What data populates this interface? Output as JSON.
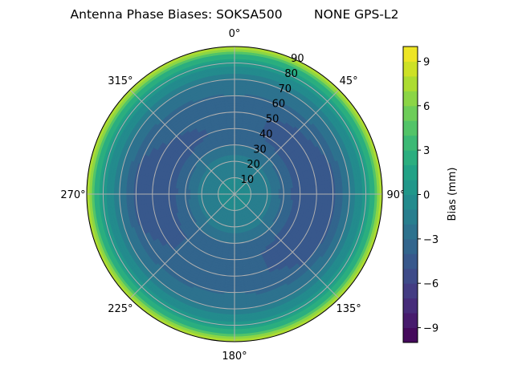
{
  "chart_data": {
    "type": "heatmap",
    "projection": "polar",
    "title": "Antenna Phase Biases: SOKSA500        NONE GPS-L2",
    "theta_direction": "clockwise",
    "theta_zero": "north",
    "theta_tick_labels": [
      "0°",
      "45°",
      "90°",
      "135°",
      "180°",
      "225°",
      "270°",
      "315°"
    ],
    "r_tick_labels": [
      "10",
      "20",
      "30",
      "40",
      "50",
      "60",
      "70",
      "80",
      "90"
    ],
    "r_range": [
      0,
      90
    ],
    "grid": true,
    "zenith": [
      0,
      10,
      20,
      30,
      40,
      50,
      60,
      70,
      80,
      85,
      90
    ],
    "azimuth": [
      0,
      45,
      90,
      135,
      180,
      225,
      270,
      315
    ],
    "values": [
      [
        0,
        0,
        0,
        0,
        0,
        0,
        0,
        0
      ],
      [
        -1,
        -1,
        -1,
        -1,
        -1,
        -1,
        -1,
        -1
      ],
      [
        -1.5,
        -1.5,
        -1.5,
        -1.5,
        -1.5,
        -1.5,
        -1.5,
        -1.5
      ],
      [
        -3,
        -3,
        -3.5,
        -3,
        -3,
        -3,
        -3.5,
        -3
      ],
      [
        -3.5,
        -4.5,
        -4.5,
        -4.5,
        -3.5,
        -4,
        -4.5,
        -4.5
      ],
      [
        -3.5,
        -4.5,
        -4.5,
        -4.5,
        -3.5,
        -4,
        -4.5,
        -4
      ],
      [
        -3,
        -3.5,
        -4.5,
        -4,
        -3,
        -3.5,
        -4.5,
        -3.5
      ],
      [
        -2,
        -2,
        -2,
        -2,
        -2,
        -2,
        -2,
        -2
      ],
      [
        0.5,
        0.5,
        0.5,
        0.5,
        0.5,
        0.5,
        0.5,
        0.5
      ],
      [
        3,
        3,
        3,
        3,
        3,
        3,
        3,
        3
      ],
      [
        8.5,
        8.5,
        8.5,
        8.5,
        8.5,
        8.5,
        8.5,
        8.5
      ]
    ],
    "colormap": "viridis",
    "levels": [
      -10,
      10,
      1
    ],
    "colorbar": {
      "label": "Bias (mm)",
      "ticks": [
        -9,
        -6,
        -3,
        0,
        3,
        6,
        9
      ],
      "tick_labels": [
        "−9",
        "−6",
        "−3",
        "0",
        "3",
        "6",
        "9"
      ],
      "range": [
        -10,
        10
      ],
      "placement": "right"
    }
  }
}
